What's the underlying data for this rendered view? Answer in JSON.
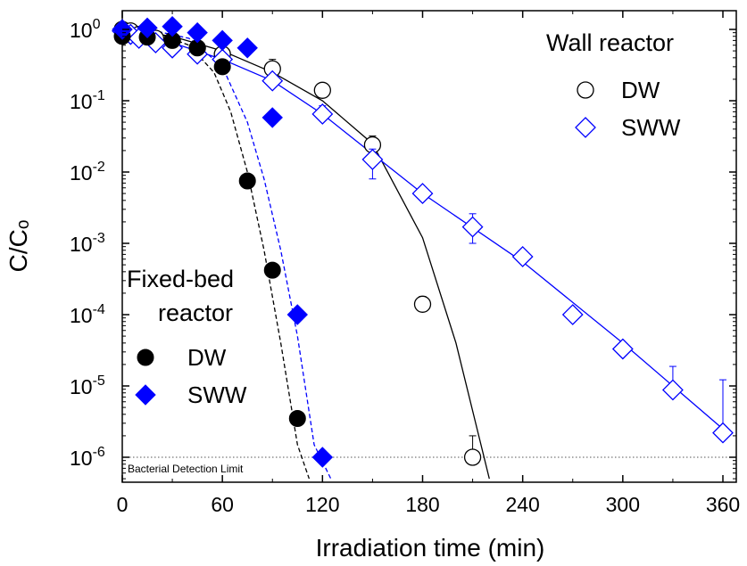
{
  "chart_data": {
    "type": "scatter",
    "xlabel": "Irradiation time (min)",
    "ylabel": "C/Cₒ",
    "xlim": [
      0,
      370
    ],
    "ylim": [
      5e-07,
      1.5
    ],
    "yscale": "log",
    "grid": false,
    "x_ticks": [
      0,
      60,
      120,
      180,
      240,
      300,
      360
    ],
    "x_tick_labels": [
      "0",
      "60",
      "120",
      "180",
      "240",
      "300",
      "360"
    ],
    "y_ticks": [
      1e-06,
      1e-05,
      0.0001,
      0.001,
      0.01,
      0.1,
      1
    ],
    "y_tick_labels": [
      {
        "base": "10",
        "exp": "-6"
      },
      {
        "base": "10",
        "exp": "-5"
      },
      {
        "base": "10",
        "exp": "-4"
      },
      {
        "base": "10",
        "exp": "-3"
      },
      {
        "base": "10",
        "exp": "-2"
      },
      {
        "base": "10",
        "exp": "-1"
      },
      {
        "base": "10",
        "exp": "0"
      }
    ],
    "legends": [
      {
        "title": "Wall reactor",
        "position": "top-right",
        "entries": [
          "DW",
          "SWW"
        ]
      },
      {
        "title_lines": [
          "Fixed-bed",
          "reactor"
        ],
        "position": "bottom-left",
        "entries": [
          "DW",
          "SWW"
        ]
      }
    ],
    "annotations": [
      {
        "text": "Bacterial Detection Limit",
        "y": 1e-06
      }
    ],
    "series": [
      {
        "name": "DW",
        "group": "Wall reactor",
        "marker": "open-circle",
        "color": "#000000",
        "x": [
          0,
          5,
          10,
          20,
          30,
          45,
          60,
          90,
          120,
          150,
          180,
          210
        ],
        "y": [
          1.0,
          0.95,
          0.85,
          0.75,
          0.7,
          0.55,
          0.45,
          0.28,
          0.14,
          0.024,
          0.00014,
          1e-06
        ],
        "err_up": [
          0,
          0,
          0,
          0,
          0,
          0,
          0,
          0.1,
          0,
          0.008,
          4e-05,
          1e-06
        ]
      },
      {
        "name": "SWW",
        "group": "Wall reactor",
        "marker": "open-diamond",
        "color": "#0000ff",
        "x": [
          0,
          5,
          10,
          20,
          30,
          45,
          60,
          90,
          120,
          150,
          180,
          210,
          240,
          270,
          300,
          330,
          360
        ],
        "y": [
          0.95,
          0.85,
          0.75,
          0.65,
          0.55,
          0.45,
          0.38,
          0.19,
          0.065,
          0.015,
          0.005,
          0.0017,
          0.00065,
          0.0001,
          3.3e-05,
          8.8e-06,
          2.2e-06
        ],
        "err_up": [
          0,
          0,
          0,
          0,
          0,
          0,
          0,
          0,
          0.02,
          0.006,
          0,
          0.0009,
          0,
          0,
          0,
          1e-05,
          1e-05
        ],
        "err_down": [
          0,
          0,
          0,
          0,
          0,
          0,
          0,
          0,
          0,
          0.007,
          0,
          0.0007,
          0,
          0,
          0,
          0,
          0
        ]
      },
      {
        "name": "DW",
        "group": "Fixed-bed reactor",
        "marker": "filled-circle",
        "color": "#000000",
        "x": [
          0,
          15,
          30,
          45,
          60,
          75,
          90,
          105
        ],
        "y": [
          0.8,
          0.78,
          0.7,
          0.55,
          0.3,
          0.0075,
          0.00042,
          3.5e-06
        ]
      },
      {
        "name": "SWW",
        "group": "Fixed-bed reactor",
        "marker": "filled-diamond",
        "color": "#0000ff",
        "x": [
          0,
          15,
          30,
          45,
          60,
          75,
          90,
          105,
          120
        ],
        "y": [
          1.0,
          1.05,
          1.1,
          0.9,
          0.7,
          0.55,
          0.058,
          0.0001,
          1e-06
        ]
      }
    ],
    "fit_curves": [
      {
        "group": "Wall reactor",
        "name": "DW",
        "style": "solid",
        "color": "#000000",
        "x": [
          0,
          30,
          60,
          90,
          120,
          150,
          180,
          200,
          215,
          220
        ],
        "y": [
          1.0,
          0.8,
          0.5,
          0.25,
          0.1,
          0.025,
          0.0012,
          4e-05,
          1.5e-06,
          5e-07
        ]
      },
      {
        "group": "Wall reactor",
        "name": "SWW",
        "style": "solid",
        "color": "#0000ff",
        "x": [
          0,
          30,
          60,
          90,
          120,
          150,
          180,
          240,
          300,
          360
        ],
        "y": [
          1.0,
          0.65,
          0.38,
          0.19,
          0.065,
          0.018,
          0.005,
          0.00055,
          4e-05,
          2.5e-06
        ]
      },
      {
        "group": "Fixed-bed reactor",
        "name": "DW",
        "style": "dashed",
        "color": "#000000",
        "x": [
          0,
          20,
          40,
          55,
          65,
          75,
          85,
          95,
          105,
          112
        ],
        "y": [
          1.0,
          0.9,
          0.6,
          0.25,
          0.07,
          0.01,
          0.0008,
          4e-05,
          1.5e-06,
          5e-07
        ]
      },
      {
        "group": "Fixed-bed reactor",
        "name": "SWW",
        "style": "dashed",
        "color": "#0000ff",
        "x": [
          0,
          20,
          40,
          60,
          75,
          85,
          95,
          105,
          115,
          125
        ],
        "y": [
          1.0,
          0.95,
          0.75,
          0.3,
          0.05,
          0.008,
          0.0008,
          5e-05,
          1.5e-06,
          5e-07
        ]
      }
    ]
  }
}
